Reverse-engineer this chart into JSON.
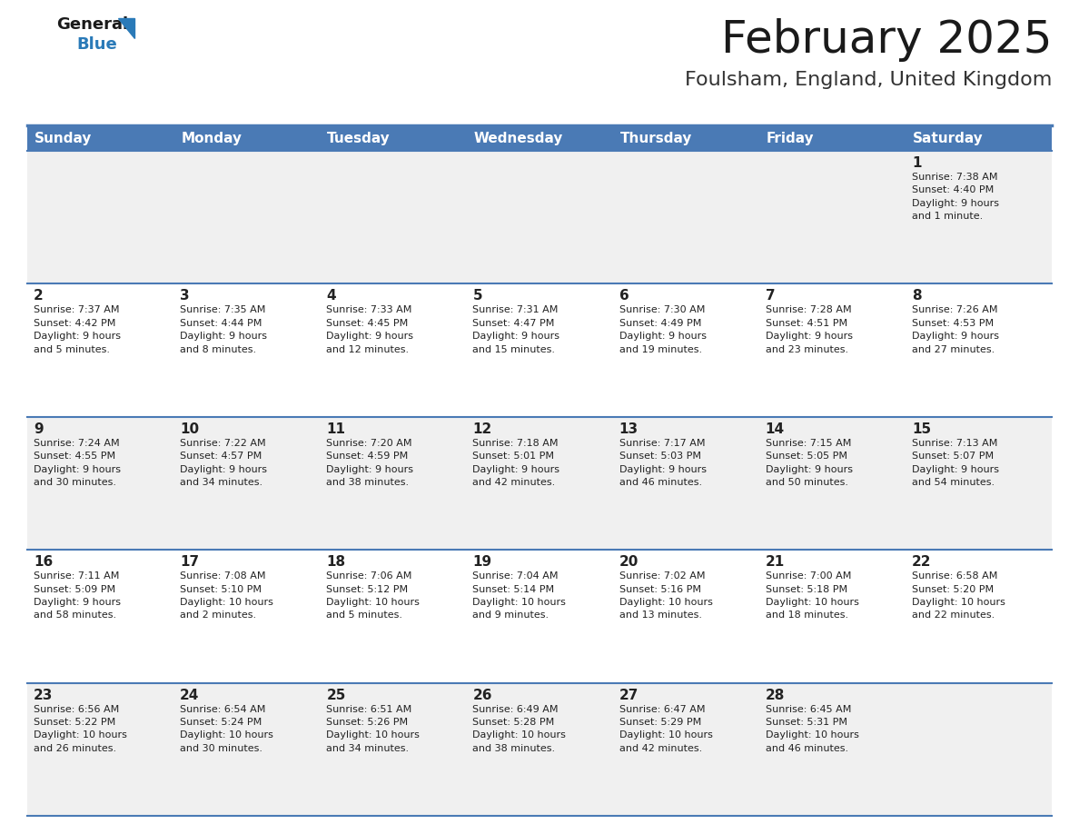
{
  "title": "February 2025",
  "subtitle": "Foulsham, England, United Kingdom",
  "header_bg": "#4a7ab5",
  "header_text_color": "#ffffff",
  "cell_bg_odd": "#f0f0f0",
  "cell_bg_even": "#ffffff",
  "day_headers": [
    "Sunday",
    "Monday",
    "Tuesday",
    "Wednesday",
    "Thursday",
    "Friday",
    "Saturday"
  ],
  "separator_color": "#4a7ab5",
  "day_number_color": "#222222",
  "info_color": "#222222",
  "logo_color": "#2a7ab8",
  "logo_general_color": "#1a1a1a",
  "title_color": "#1a1a1a",
  "subtitle_color": "#333333",
  "title_fontsize": 36,
  "subtitle_fontsize": 16,
  "header_fontsize": 11,
  "day_num_fontsize": 11,
  "info_fontsize": 8,
  "fig_width": 11.88,
  "fig_height": 9.18,
  "dpi": 100,
  "weeks": [
    [
      {
        "day": null,
        "info": null
      },
      {
        "day": null,
        "info": null
      },
      {
        "day": null,
        "info": null
      },
      {
        "day": null,
        "info": null
      },
      {
        "day": null,
        "info": null
      },
      {
        "day": null,
        "info": null
      },
      {
        "day": "1",
        "info": "Sunrise: 7:38 AM\nSunset: 4:40 PM\nDaylight: 9 hours\nand 1 minute."
      }
    ],
    [
      {
        "day": "2",
        "info": "Sunrise: 7:37 AM\nSunset: 4:42 PM\nDaylight: 9 hours\nand 5 minutes."
      },
      {
        "day": "3",
        "info": "Sunrise: 7:35 AM\nSunset: 4:44 PM\nDaylight: 9 hours\nand 8 minutes."
      },
      {
        "day": "4",
        "info": "Sunrise: 7:33 AM\nSunset: 4:45 PM\nDaylight: 9 hours\nand 12 minutes."
      },
      {
        "day": "5",
        "info": "Sunrise: 7:31 AM\nSunset: 4:47 PM\nDaylight: 9 hours\nand 15 minutes."
      },
      {
        "day": "6",
        "info": "Sunrise: 7:30 AM\nSunset: 4:49 PM\nDaylight: 9 hours\nand 19 minutes."
      },
      {
        "day": "7",
        "info": "Sunrise: 7:28 AM\nSunset: 4:51 PM\nDaylight: 9 hours\nand 23 minutes."
      },
      {
        "day": "8",
        "info": "Sunrise: 7:26 AM\nSunset: 4:53 PM\nDaylight: 9 hours\nand 27 minutes."
      }
    ],
    [
      {
        "day": "9",
        "info": "Sunrise: 7:24 AM\nSunset: 4:55 PM\nDaylight: 9 hours\nand 30 minutes."
      },
      {
        "day": "10",
        "info": "Sunrise: 7:22 AM\nSunset: 4:57 PM\nDaylight: 9 hours\nand 34 minutes."
      },
      {
        "day": "11",
        "info": "Sunrise: 7:20 AM\nSunset: 4:59 PM\nDaylight: 9 hours\nand 38 minutes."
      },
      {
        "day": "12",
        "info": "Sunrise: 7:18 AM\nSunset: 5:01 PM\nDaylight: 9 hours\nand 42 minutes."
      },
      {
        "day": "13",
        "info": "Sunrise: 7:17 AM\nSunset: 5:03 PM\nDaylight: 9 hours\nand 46 minutes."
      },
      {
        "day": "14",
        "info": "Sunrise: 7:15 AM\nSunset: 5:05 PM\nDaylight: 9 hours\nand 50 minutes."
      },
      {
        "day": "15",
        "info": "Sunrise: 7:13 AM\nSunset: 5:07 PM\nDaylight: 9 hours\nand 54 minutes."
      }
    ],
    [
      {
        "day": "16",
        "info": "Sunrise: 7:11 AM\nSunset: 5:09 PM\nDaylight: 9 hours\nand 58 minutes."
      },
      {
        "day": "17",
        "info": "Sunrise: 7:08 AM\nSunset: 5:10 PM\nDaylight: 10 hours\nand 2 minutes."
      },
      {
        "day": "18",
        "info": "Sunrise: 7:06 AM\nSunset: 5:12 PM\nDaylight: 10 hours\nand 5 minutes."
      },
      {
        "day": "19",
        "info": "Sunrise: 7:04 AM\nSunset: 5:14 PM\nDaylight: 10 hours\nand 9 minutes."
      },
      {
        "day": "20",
        "info": "Sunrise: 7:02 AM\nSunset: 5:16 PM\nDaylight: 10 hours\nand 13 minutes."
      },
      {
        "day": "21",
        "info": "Sunrise: 7:00 AM\nSunset: 5:18 PM\nDaylight: 10 hours\nand 18 minutes."
      },
      {
        "day": "22",
        "info": "Sunrise: 6:58 AM\nSunset: 5:20 PM\nDaylight: 10 hours\nand 22 minutes."
      }
    ],
    [
      {
        "day": "23",
        "info": "Sunrise: 6:56 AM\nSunset: 5:22 PM\nDaylight: 10 hours\nand 26 minutes."
      },
      {
        "day": "24",
        "info": "Sunrise: 6:54 AM\nSunset: 5:24 PM\nDaylight: 10 hours\nand 30 minutes."
      },
      {
        "day": "25",
        "info": "Sunrise: 6:51 AM\nSunset: 5:26 PM\nDaylight: 10 hours\nand 34 minutes."
      },
      {
        "day": "26",
        "info": "Sunrise: 6:49 AM\nSunset: 5:28 PM\nDaylight: 10 hours\nand 38 minutes."
      },
      {
        "day": "27",
        "info": "Sunrise: 6:47 AM\nSunset: 5:29 PM\nDaylight: 10 hours\nand 42 minutes."
      },
      {
        "day": "28",
        "info": "Sunrise: 6:45 AM\nSunset: 5:31 PM\nDaylight: 10 hours\nand 46 minutes."
      },
      {
        "day": null,
        "info": null
      }
    ]
  ]
}
